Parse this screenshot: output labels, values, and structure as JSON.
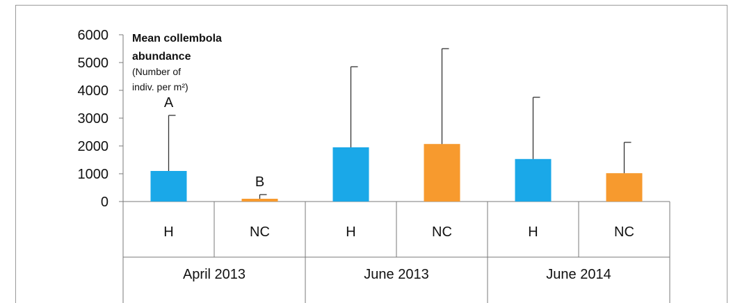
{
  "chart_data": {
    "type": "bar",
    "ylabel_lines": [
      "Mean collembola",
      "abundance"
    ],
    "ylabel_unit_lines": [
      "(Number of",
      "indiv. per m²)"
    ],
    "ylim": [
      0,
      6000
    ],
    "yticks": [
      "0",
      "1000",
      "2000",
      "3000",
      "4000",
      "5000",
      "6000"
    ],
    "groups": [
      "April 2013",
      "June 2013",
      "June 2014"
    ],
    "categories": [
      "H",
      "NC",
      "H",
      "NC",
      "H",
      "NC"
    ],
    "values": [
      1100,
      100,
      1950,
      2070,
      1530,
      1020
    ],
    "error_upper": [
      3100,
      250,
      4850,
      5500,
      3750,
      2130
    ],
    "annotations": [
      "A",
      "B",
      "",
      "",
      "",
      ""
    ],
    "colors": [
      "#1aa8e8",
      "#f79a2e",
      "#1aa8e8",
      "#f79a2e",
      "#1aa8e8",
      "#f79a2e"
    ],
    "grid": false
  }
}
